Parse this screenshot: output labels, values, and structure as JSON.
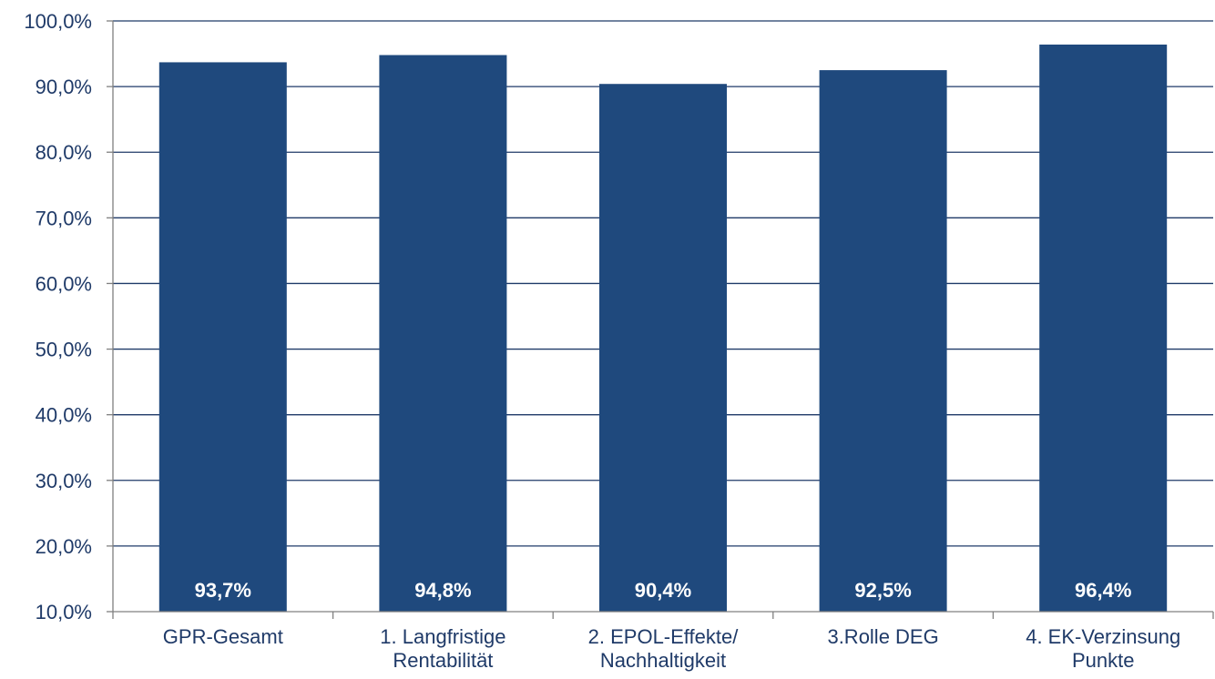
{
  "chart_data": {
    "type": "bar",
    "categories": [
      [
        "GPR-Gesamt"
      ],
      [
        "1. Langfristige",
        "Rentabilität"
      ],
      [
        "2.  EPOL-Effekte/",
        "Nachhaltigkeit"
      ],
      [
        "3.Rolle DEG"
      ],
      [
        "4. EK-Verzinsung",
        "Punkte"
      ]
    ],
    "values": [
      93.7,
      94.8,
      90.4,
      92.5,
      96.4
    ],
    "data_labels": [
      "93,7%",
      "94,8%",
      "90,4%",
      "92,5%",
      "96,4%"
    ],
    "y_ticks": [
      10,
      20,
      30,
      40,
      50,
      60,
      70,
      80,
      90,
      100
    ],
    "y_tick_labels": [
      "10,0%",
      "20,0%",
      "30,0%",
      "40,0%",
      "50,0%",
      "60,0%",
      "70,0%",
      "80,0%",
      "90,0%",
      "100,0%"
    ],
    "ylim": [
      10,
      100
    ],
    "grid": true,
    "legend": "none",
    "colors": {
      "bar": "#1f497d",
      "grid": "#1f3a68",
      "text": "#1f3a68",
      "data_label": "#ffffff"
    }
  }
}
